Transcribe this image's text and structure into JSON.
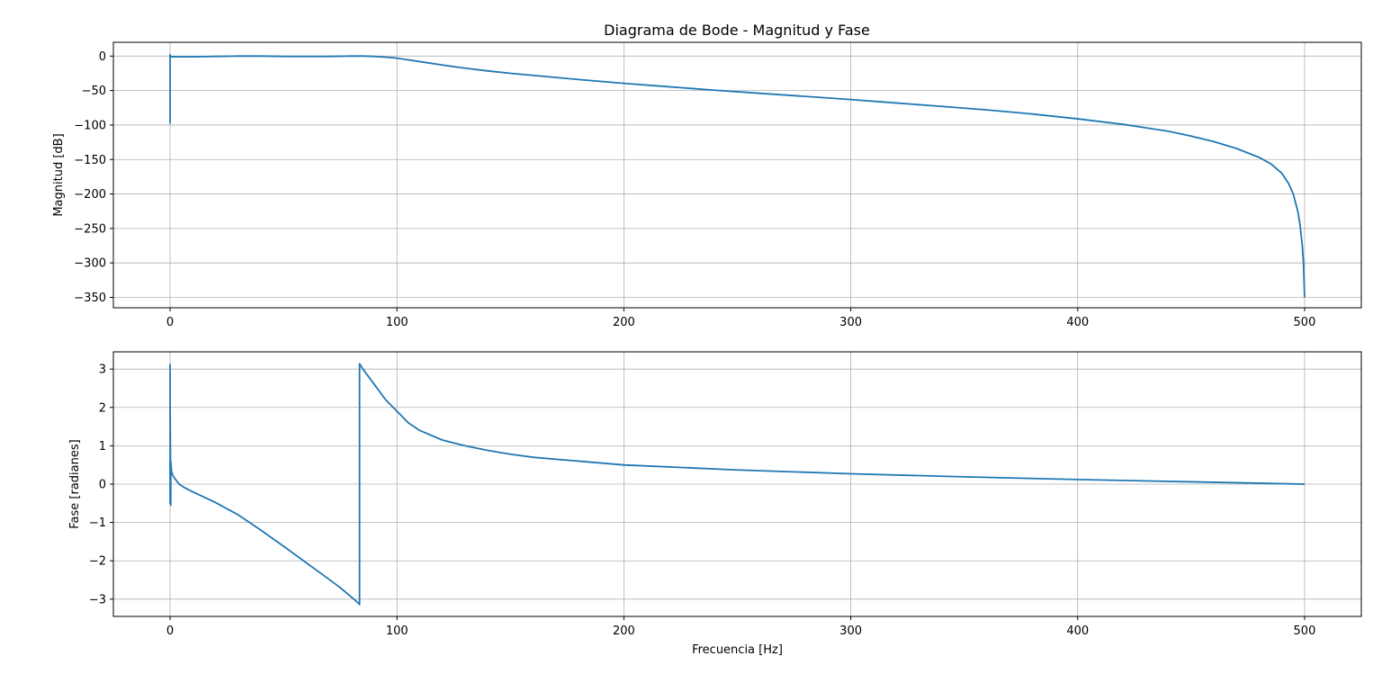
{
  "figure": {
    "title": "Diagrama de Bode - Magnitud y Fase",
    "line_color": "#1f77b4",
    "grid_color": "#b0b0b0"
  },
  "chart_data": [
    {
      "type": "line",
      "title": "Diagrama de Bode - Magnitud y Fase",
      "xlabel": "",
      "ylabel": "Magnitud [dB]",
      "xlim": [
        -25,
        525
      ],
      "ylim": [
        -365,
        20
      ],
      "xticks": [
        0,
        100,
        200,
        300,
        400,
        500
      ],
      "yticks": [
        0,
        -50,
        -100,
        -150,
        -200,
        -250,
        -300,
        -350
      ],
      "grid": true,
      "series": [
        {
          "x": [
            0,
            0,
            0.2,
            0.5,
            1,
            2,
            5,
            10,
            20,
            30,
            40,
            50,
            60,
            70,
            80,
            85,
            90,
            95,
            100,
            105,
            110,
            120,
            130,
            140,
            150,
            160,
            180,
            200,
            220,
            240,
            260,
            280,
            300,
            320,
            340,
            360,
            380,
            400,
            420,
            440,
            450,
            460,
            470,
            480,
            485,
            490,
            493,
            495,
            497,
            498,
            499,
            499.5,
            500
          ],
          "values": [
            -98,
            2,
            0,
            -1,
            -1,
            -1,
            -1,
            -1,
            -0.5,
            0,
            0,
            -0.5,
            -0.5,
            -0.5,
            0,
            0,
            -0.5,
            -1.5,
            -3,
            -5.5,
            -8,
            -13,
            -17.5,
            -21.5,
            -25,
            -28,
            -34,
            -39.5,
            -44.5,
            -49.5,
            -54,
            -58.5,
            -63,
            -68,
            -73,
            -78,
            -84,
            -91,
            -99,
            -109,
            -116,
            -124,
            -134,
            -147,
            -156,
            -170,
            -185,
            -200,
            -225,
            -245,
            -275,
            -300,
            -350
          ]
        }
      ]
    },
    {
      "type": "line",
      "xlabel": "Frecuencia [Hz]",
      "ylabel": "Fase [radianes]",
      "xlim": [
        -25,
        525
      ],
      "ylim": [
        -3.45,
        3.45
      ],
      "xticks": [
        0,
        100,
        200,
        300,
        400,
        500
      ],
      "yticks": [
        3,
        2,
        1,
        0,
        -1,
        -2,
        -3
      ],
      "grid": true,
      "series": [
        {
          "x": [
            0,
            0,
            0,
            0.3,
            0.3,
            0.6,
            1,
            2,
            4,
            6,
            10,
            20,
            30,
            40,
            50,
            60,
            70,
            75,
            80,
            82,
            83.5,
            83.5,
            85,
            90,
            95,
            100,
            105,
            110,
            120,
            130,
            140,
            150,
            160,
            180,
            200,
            250,
            300,
            350,
            400,
            450,
            500
          ],
          "values": [
            3.14,
            -0.5,
            2.2,
            -0.55,
            0.6,
            0.35,
            0.25,
            0.15,
            0.0,
            -0.08,
            -0.2,
            -0.48,
            -0.8,
            -1.2,
            -1.62,
            -2.05,
            -2.48,
            -2.7,
            -2.95,
            -3.05,
            -3.14,
            3.14,
            3.0,
            2.6,
            2.2,
            1.9,
            1.6,
            1.4,
            1.15,
            1.0,
            0.88,
            0.78,
            0.7,
            0.6,
            0.5,
            0.37,
            0.27,
            0.19,
            0.12,
            0.06,
            0.0
          ]
        }
      ]
    }
  ]
}
